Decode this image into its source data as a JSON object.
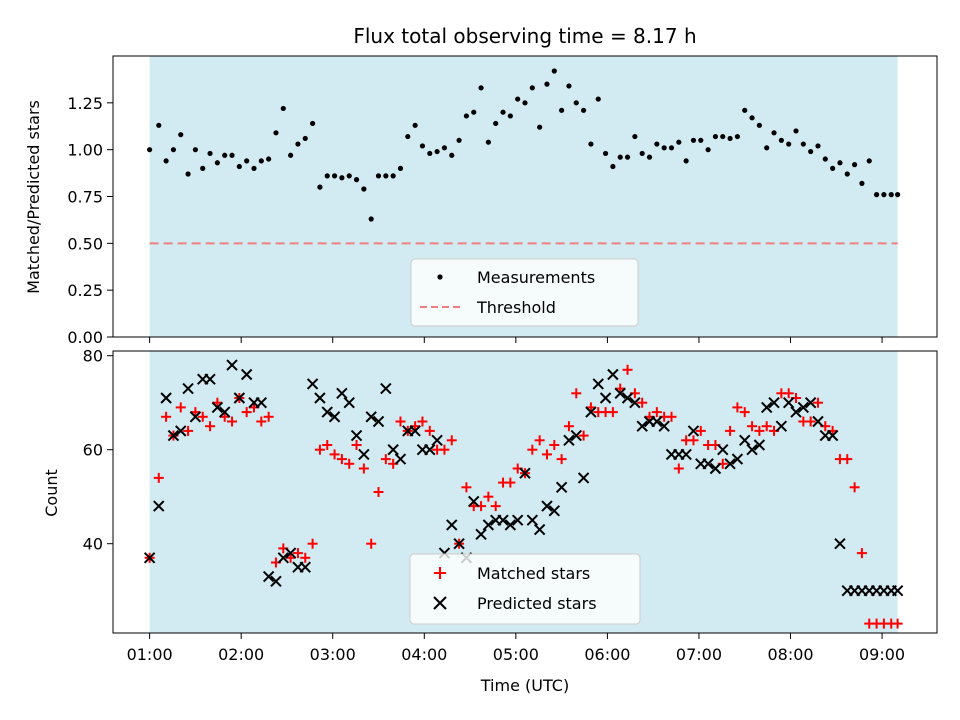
{
  "title": "Flux total observing time = 8.17 h",
  "x_axis": {
    "label": "Time (UTC)",
    "unit": "hours (UTC)",
    "ticks": [
      {
        "value": 1,
        "label": "01:00"
      },
      {
        "value": 2,
        "label": "02:00"
      },
      {
        "value": 3,
        "label": "03:00"
      },
      {
        "value": 4,
        "label": "04:00"
      },
      {
        "value": 5,
        "label": "05:00"
      },
      {
        "value": 6,
        "label": "06:00"
      },
      {
        "value": 7,
        "label": "07:00"
      },
      {
        "value": 8,
        "label": "08:00"
      },
      {
        "value": 9,
        "label": "09:00"
      }
    ]
  },
  "colors": {
    "shade": "#add8e6",
    "measurements": "#000000",
    "threshold": "#f08080",
    "matched": "#ff0000",
    "predicted": "#000000"
  },
  "chart_data": [
    {
      "type": "scatter",
      "ylabel": "Matched/Predicted stars",
      "xlim": [
        0.6,
        9.6
      ],
      "ylim": [
        0,
        1.5
      ],
      "yticks": [
        {
          "value": 0,
          "label": "0.00"
        },
        {
          "value": 0.25,
          "label": "0.25"
        },
        {
          "value": 0.5,
          "label": "0.50"
        },
        {
          "value": 0.75,
          "label": "0.75"
        },
        {
          "value": 1.0,
          "label": "1.00"
        },
        {
          "value": 1.25,
          "label": "1.25"
        }
      ],
      "shaded_interval": [
        1.0,
        9.17
      ],
      "threshold": {
        "name": "Threshold",
        "value": 0.5
      },
      "legend": {
        "position": "lower-center",
        "entries": [
          "Measurements",
          "Threshold"
        ]
      },
      "series": [
        {
          "name": "Measurements",
          "x": [
            1.0,
            1.1,
            1.18,
            1.26,
            1.34,
            1.42,
            1.5,
            1.58,
            1.66,
            1.74,
            1.82,
            1.9,
            1.98,
            2.06,
            2.14,
            2.22,
            2.3,
            2.38,
            2.46,
            2.54,
            2.62,
            2.7,
            2.78,
            2.86,
            2.94,
            3.02,
            3.1,
            3.18,
            3.26,
            3.34,
            3.42,
            3.5,
            3.58,
            3.66,
            3.74,
            3.82,
            3.9,
            3.98,
            4.06,
            4.14,
            4.22,
            4.3,
            4.38,
            4.46,
            4.54,
            4.62,
            4.7,
            4.78,
            4.86,
            4.94,
            5.02,
            5.1,
            5.18,
            5.26,
            5.34,
            5.42,
            5.5,
            5.58,
            5.66,
            5.74,
            5.82,
            5.9,
            5.98,
            6.06,
            6.14,
            6.22,
            6.3,
            6.38,
            6.46,
            6.54,
            6.62,
            6.7,
            6.78,
            6.86,
            6.94,
            7.02,
            7.1,
            7.18,
            7.26,
            7.34,
            7.42,
            7.5,
            7.58,
            7.66,
            7.74,
            7.82,
            7.9,
            7.98,
            8.06,
            8.14,
            8.22,
            8.3,
            8.38,
            8.46,
            8.54,
            8.62,
            8.7,
            8.78,
            8.86,
            8.94,
            9.02,
            9.1,
            9.17
          ],
          "y": [
            1.0,
            1.13,
            0.94,
            1.0,
            1.08,
            0.87,
            1.0,
            0.9,
            0.98,
            0.93,
            0.97,
            0.97,
            0.91,
            0.94,
            0.9,
            0.94,
            0.95,
            1.09,
            1.22,
            0.97,
            1.03,
            1.06,
            1.14,
            0.8,
            0.86,
            0.86,
            0.85,
            0.86,
            0.84,
            0.79,
            0.63,
            0.86,
            0.86,
            0.86,
            0.9,
            1.07,
            1.13,
            1.02,
            0.98,
            0.99,
            1.01,
            0.97,
            1.05,
            1.18,
            1.2,
            1.33,
            1.04,
            1.14,
            1.2,
            1.18,
            1.27,
            1.25,
            1.33,
            1.12,
            1.35,
            1.42,
            1.21,
            1.34,
            1.25,
            1.21,
            1.03,
            1.27,
            0.98,
            0.91,
            0.96,
            0.96,
            1.07,
            0.98,
            0.96,
            1.03,
            1.01,
            1.01,
            1.04,
            0.94,
            1.05,
            1.05,
            1.0,
            1.07,
            1.07,
            1.06,
            1.07,
            1.21,
            1.17,
            1.13,
            1.01,
            1.09,
            1.05,
            1.03,
            1.1,
            1.03,
            0.99,
            1.02,
            0.95,
            0.9,
            0.93,
            0.87,
            0.92,
            0.82,
            0.94,
            0.76,
            0.76,
            0.76,
            0.76
          ]
        }
      ]
    },
    {
      "type": "scatter",
      "xlabel": "Time (UTC)",
      "ylabel": "Count",
      "xlim": [
        0.6,
        9.6
      ],
      "ylim": [
        21,
        81
      ],
      "yticks": [
        {
          "value": 40,
          "label": "40"
        },
        {
          "value": 60,
          "label": "60"
        },
        {
          "value": 80,
          "label": "80"
        }
      ],
      "shaded_interval": [
        1.0,
        9.17
      ],
      "legend": {
        "position": "lower-center",
        "entries": [
          "Matched stars",
          "Predicted stars"
        ]
      },
      "series": [
        {
          "name": "Matched stars",
          "marker": "plus",
          "x": [
            1.0,
            1.1,
            1.18,
            1.26,
            1.34,
            1.42,
            1.5,
            1.58,
            1.66,
            1.74,
            1.82,
            1.9,
            1.98,
            2.06,
            2.14,
            2.22,
            2.3,
            2.38,
            2.46,
            2.54,
            2.62,
            2.7,
            2.78,
            2.86,
            2.94,
            3.02,
            3.1,
            3.18,
            3.26,
            3.34,
            3.42,
            3.5,
            3.58,
            3.66,
            3.74,
            3.82,
            3.9,
            3.98,
            4.06,
            4.14,
            4.22,
            4.3,
            4.38,
            4.46,
            4.54,
            4.62,
            4.7,
            4.78,
            4.86,
            4.94,
            5.02,
            5.1,
            5.18,
            5.26,
            5.34,
            5.42,
            5.5,
            5.58,
            5.66,
            5.74,
            5.82,
            5.9,
            5.98,
            6.06,
            6.14,
            6.22,
            6.3,
            6.38,
            6.46,
            6.54,
            6.62,
            6.7,
            6.78,
            6.86,
            6.94,
            7.02,
            7.1,
            7.18,
            7.26,
            7.34,
            7.42,
            7.5,
            7.58,
            7.66,
            7.74,
            7.82,
            7.9,
            7.98,
            8.06,
            8.14,
            8.22,
            8.3,
            8.38,
            8.46,
            8.54,
            8.62,
            8.7,
            8.78,
            8.86,
            8.94,
            9.02,
            9.1,
            9.17
          ],
          "y": [
            37,
            54,
            67,
            63,
            69,
            64,
            68,
            67,
            65,
            70,
            67,
            66,
            71,
            68,
            69,
            66,
            67,
            36,
            39,
            37,
            38,
            37,
            40,
            60,
            61,
            59,
            58,
            57,
            61,
            56,
            40,
            51,
            58,
            57,
            66,
            64,
            65,
            66,
            64,
            60,
            60,
            62,
            40,
            52,
            48,
            48,
            50,
            48,
            53,
            53,
            56,
            55,
            60,
            62,
            59,
            61,
            58,
            65,
            72,
            63,
            69,
            68,
            68,
            68,
            73,
            77,
            72,
            70,
            67,
            68,
            67,
            67,
            56,
            62,
            62,
            64,
            61,
            61,
            57,
            64,
            69,
            68,
            65,
            64,
            65,
            64,
            72,
            72,
            71,
            66,
            66,
            70,
            65,
            64,
            58,
            58,
            52,
            38,
            23,
            23,
            23,
            23,
            23
          ]
        },
        {
          "name": "Predicted stars",
          "marker": "x",
          "x": [
            1.0,
            1.1,
            1.18,
            1.26,
            1.34,
            1.42,
            1.5,
            1.58,
            1.66,
            1.74,
            1.82,
            1.9,
            1.98,
            2.06,
            2.14,
            2.22,
            2.3,
            2.38,
            2.46,
            2.54,
            2.62,
            2.7,
            2.78,
            2.86,
            2.94,
            3.02,
            3.1,
            3.18,
            3.26,
            3.34,
            3.42,
            3.5,
            3.58,
            3.66,
            3.74,
            3.82,
            3.9,
            3.98,
            4.06,
            4.14,
            4.22,
            4.3,
            4.38,
            4.46,
            4.54,
            4.62,
            4.7,
            4.78,
            4.86,
            4.94,
            5.02,
            5.1,
            5.18,
            5.26,
            5.34,
            5.42,
            5.5,
            5.58,
            5.66,
            5.74,
            5.82,
            5.9,
            5.98,
            6.06,
            6.14,
            6.22,
            6.3,
            6.38,
            6.46,
            6.54,
            6.62,
            6.7,
            6.78,
            6.86,
            6.94,
            7.02,
            7.1,
            7.18,
            7.26,
            7.34,
            7.42,
            7.5,
            7.58,
            7.66,
            7.74,
            7.82,
            7.9,
            7.98,
            8.06,
            8.14,
            8.22,
            8.3,
            8.38,
            8.46,
            8.54,
            8.62,
            8.7,
            8.78,
            8.86,
            8.94,
            9.02,
            9.1,
            9.17
          ],
          "y": [
            37,
            48,
            71,
            63,
            64,
            73,
            67,
            75,
            75,
            69,
            68,
            78,
            71,
            76,
            70,
            70,
            33,
            32,
            37,
            38,
            35,
            35,
            74,
            71,
            68,
            67,
            72,
            70,
            63,
            59,
            67,
            66,
            73,
            60,
            58,
            64,
            64,
            60,
            60,
            62,
            38,
            44,
            40,
            37,
            49,
            42,
            44,
            45,
            45,
            44,
            45,
            55,
            45,
            43,
            48,
            47,
            52,
            62,
            63,
            54,
            68,
            74,
            71,
            76,
            72,
            71,
            70,
            65,
            66,
            66,
            65,
            59,
            59,
            59,
            64,
            57,
            57,
            56,
            60,
            57,
            58,
            62,
            60,
            61,
            69,
            70,
            65,
            70,
            68,
            69,
            70,
            66,
            63,
            63,
            40,
            30,
            30,
            30,
            30,
            30,
            30,
            30,
            30
          ]
        }
      ]
    }
  ]
}
